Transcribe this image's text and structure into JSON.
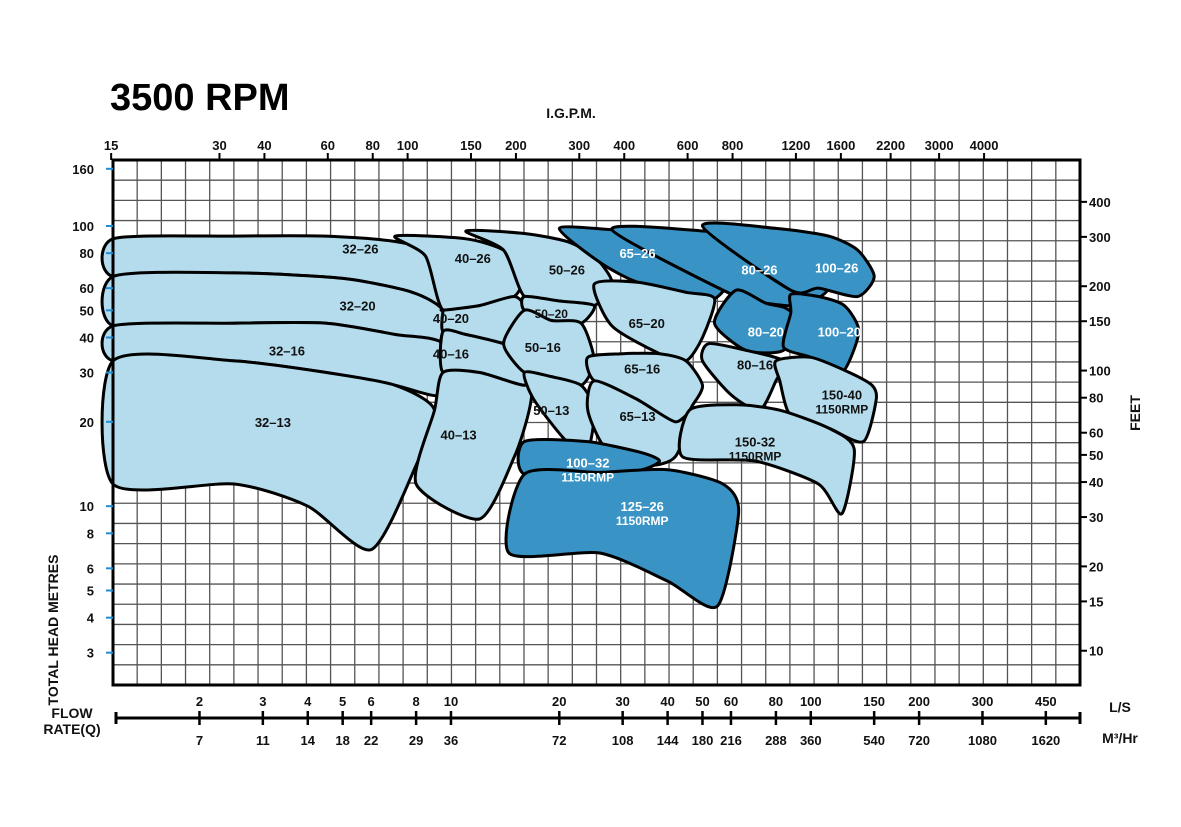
{
  "chart_data": {
    "type": "area",
    "title": "3500 RPM",
    "top_axis_title": "I.G.P.M.",
    "left_axis_title": "TOTAL HEAD     METRES",
    "right_axis_title": "FEET",
    "flow_title_line1": "FLOW",
    "flow_title_line2": "RATE(Q)",
    "unit_ls": "L/S",
    "unit_m3": "M³/Hr",
    "scale": "log-log",
    "grid": true,
    "x_range_ls": [
      1.15,
      560
    ],
    "y_range_m": [
      2.3,
      172
    ],
    "x_ticks_ls": [
      "2",
      "3",
      "4",
      "5",
      "6",
      "8",
      "10",
      "20",
      "30",
      "40",
      "50",
      "60",
      "80",
      "100",
      "150",
      "200",
      "300",
      "450"
    ],
    "x_ticks_m3hr": [
      "7",
      "11",
      "14",
      "18",
      "22",
      "29",
      "36",
      "72",
      "108",
      "144",
      "180",
      "216",
      "288",
      "360",
      "540",
      "720",
      "1080",
      "1620"
    ],
    "x_ticks_igpm": [
      "15",
      "30",
      "40",
      "60",
      "80",
      "100",
      "150",
      "200",
      "300",
      "400",
      "600",
      "800",
      "1200",
      "1600",
      "2200",
      "3000",
      "4000"
    ],
    "y_ticks_metres": [
      "160",
      "100",
      "80",
      "60",
      "50",
      "40",
      "30",
      "20",
      "10",
      "8",
      "6",
      "5",
      "4",
      "3"
    ],
    "y_ticks_feet": [
      "400",
      "300",
      "200",
      "150",
      "100",
      "80",
      "60",
      "50",
      "40",
      "30",
      "20",
      "15",
      "10"
    ],
    "series": [
      {
        "name": "32-26",
        "label": "32–26",
        "label_at": [
          5.6,
          83
        ],
        "color": "#b4dced",
        "text": "#111",
        "x": [
          1.15,
          2.5,
          4.5,
          7.0,
          9.5,
          9.5,
          7.8,
          5.0,
          2.5,
          1.15
        ],
        "y": [
          90,
          92,
          92,
          88,
          78,
          50,
          58,
          65,
          68,
          66
        ]
      },
      {
        "name": "32-20",
        "label": "32–20",
        "label_at": [
          5.5,
          52
        ],
        "color": "#b4dced",
        "text": "#111",
        "x": [
          1.15,
          2.5,
          5.0,
          7.8,
          9.5,
          9.5,
          7.0,
          4.5,
          2.5,
          1.15
        ],
        "y": [
          66,
          68,
          65,
          58,
          50,
          38,
          41,
          45,
          45,
          44
        ]
      },
      {
        "name": "32-16",
        "label": "32–16",
        "label_at": [
          3.5,
          36
        ],
        "color": "#b4dced",
        "text": "#111",
        "x": [
          1.15,
          2.5,
          4.5,
          7.0,
          9.5,
          9.5,
          7.0,
          4.5,
          2.5,
          1.15
        ],
        "y": [
          44,
          45,
          45,
          41,
          38,
          25,
          27,
          30,
          33,
          33
        ]
      },
      {
        "name": "32-13",
        "label": "32–13",
        "label_at": [
          3.2,
          20
        ],
        "color": "#b4dced",
        "text": "#111",
        "x": [
          1.15,
          2.5,
          4.5,
          7.0,
          9.0,
          8.0,
          6.0,
          4.0,
          2.5,
          1.15
        ],
        "y": [
          33,
          33,
          30,
          27,
          22,
          14,
          7,
          10,
          12,
          12
        ]
      },
      {
        "name": "40-26",
        "label": "40–26",
        "label_at": [
          11.5,
          77
        ],
        "color": "#b4dced",
        "text": "#111",
        "x": [
          7.0,
          11.0,
          14.0,
          16.0,
          15.0,
          12.0,
          9.5,
          8.5
        ],
        "y": [
          92,
          90,
          82,
          68,
          56,
          52,
          50,
          78
        ]
      },
      {
        "name": "40-20",
        "label": "40–20",
        "label_at": [
          10.0,
          47
        ],
        "color": "#b4dced",
        "text": "#111",
        "x": [
          9.5,
          12.0,
          15.0,
          16.0,
          14.0,
          11.0,
          9.5,
          9.5
        ],
        "y": [
          50,
          52,
          56,
          50,
          38,
          41,
          42,
          50
        ]
      },
      {
        "name": "40-16",
        "label": "40–16",
        "label_at": [
          10.0,
          35
        ],
        "color": "#b4dced",
        "text": "#111",
        "x": [
          9.5,
          11.0,
          14.0,
          16.0,
          17.0,
          16.0,
          12.0,
          9.5
        ],
        "y": [
          42,
          41,
          38,
          35,
          30,
          27,
          30,
          30
        ]
      },
      {
        "name": "40-13",
        "label": "40–13",
        "label_at": [
          10.5,
          18
        ],
        "color": "#b4dced",
        "text": "#111",
        "x": [
          9.5,
          12.0,
          16.0,
          17.0,
          16.5,
          15.0,
          12.0,
          8.0,
          9.0
        ],
        "y": [
          30,
          30,
          27,
          30,
          22,
          15,
          9,
          12,
          22
        ]
      },
      {
        "name": "50-26",
        "label": "50–26",
        "label_at": [
          21,
          70
        ],
        "color": "#b4dced",
        "text": "#111",
        "x": [
          11.0,
          16.0,
          21.0,
          25.0,
          28.0,
          25.0,
          20.0,
          16.0,
          14.0
        ],
        "y": [
          96,
          94,
          88,
          78,
          63,
          52,
          54,
          56,
          82
        ]
      },
      {
        "name": "50-20",
        "label": "50–20",
        "label_at": [
          19,
          49
        ],
        "color": "#b4dced",
        "text": "#111",
        "x": [
          16.0,
          20.0,
          25.0,
          23.0,
          19.0,
          16.0
        ],
        "y": [
          56,
          54,
          52,
          45,
          46,
          50
        ]
      },
      {
        "name": "50-16",
        "label": "50–16",
        "label_at": [
          18,
          37
        ],
        "color": "#b4dced",
        "text": "#111",
        "x": [
          14.0,
          16.0,
          19.0,
          23.0,
          25.0,
          23.0,
          19.0,
          16.0
        ],
        "y": [
          38,
          50,
          46,
          45,
          33,
          27,
          29,
          30
        ]
      },
      {
        "name": "50-13",
        "label": "50–13",
        "label_at": [
          19,
          22
        ],
        "color": "#b4dced",
        "text": "#111",
        "x": [
          16.0,
          19.0,
          23.0,
          25.0,
          24.0,
          21.0,
          17.0
        ],
        "y": [
          30,
          29,
          27,
          22,
          16,
          17,
          24
        ]
      },
      {
        "name": "65-26",
        "label": "65–26",
        "label_at": [
          33,
          80
        ],
        "color": "#3a93c5",
        "text": "#ffffff",
        "x": [
          20.0,
          28.0,
          38.0,
          50.0,
          62.0,
          54.0,
          45.0,
          33.0,
          26.0
        ],
        "y": [
          98,
          97,
          94,
          86,
          70,
          55,
          58,
          63,
          74
        ]
      },
      {
        "name": "65-20",
        "label": "65–20",
        "label_at": [
          35,
          45
        ],
        "color": "#b4dced",
        "text": "#111",
        "x": [
          25.0,
          33.0,
          45.0,
          54.0,
          50.0,
          45.0,
          38.0,
          28.0
        ],
        "y": [
          62,
          63,
          58,
          55,
          40,
          33,
          35,
          44
        ]
      },
      {
        "name": "65-16",
        "label": "65–16",
        "label_at": [
          34,
          31
        ],
        "color": "#b4dced",
        "text": "#111",
        "x": [
          24.0,
          30.0,
          38.0,
          45.0,
          50.0,
          47.0,
          42.0,
          33.0,
          25.0
        ],
        "y": [
          34,
          35,
          35,
          33,
          27,
          23,
          19,
          24,
          28
        ]
      },
      {
        "name": "65-13",
        "label": "65–13",
        "label_at": [
          33,
          21
        ],
        "color": "#b4dced",
        "text": "#111",
        "x": [
          25.0,
          33.0,
          42.0,
          47.0,
          42.0,
          35.0,
          27.0,
          24.0
        ],
        "y": [
          28,
          24,
          20,
          22,
          15,
          14,
          16,
          22
        ]
      },
      {
        "name": "80-26",
        "label": "80–26",
        "label_at": [
          72,
          70
        ],
        "color": "#3a93c5",
        "text": "#ffffff",
        "x": [
          28.0,
          50.0,
          78.0,
          100.0,
          112.0,
          95.0,
          75.0,
          62.0
        ],
        "y": [
          97,
          96,
          88,
          76,
          60,
          52,
          53,
          56
        ]
      },
      {
        "name": "80-20",
        "label": "80–20",
        "label_at": [
          75,
          42
        ],
        "color": "#3a93c5",
        "text": "#ffffff",
        "x": [
          62.0,
          75.0,
          85.0,
          92.0,
          84.0,
          66.0,
          54.0
        ],
        "y": [
          59,
          53,
          51,
          46,
          36,
          36,
          45
        ]
      },
      {
        "name": "80-16",
        "label": "80–16",
        "label_at": [
          70,
          32
        ],
        "color": "#b4dced",
        "text": "#111",
        "x": [
          52.0,
          66.0,
          84.0,
          80.0,
          72.0,
          60.0,
          50.0
        ],
        "y": [
          38,
          36,
          33,
          28,
          22,
          25,
          33
        ]
      },
      {
        "name": "100-26",
        "label": "100–26",
        "label_at": [
          118,
          71
        ],
        "color": "#3a93c5",
        "text": "#ffffff",
        "x": [
          50.0,
          80.0,
          112.0,
          135.0,
          150.0,
          135.0,
          105.0,
          88.0
        ],
        "y": [
          100,
          98,
          92,
          82,
          66,
          56,
          60,
          59
        ]
      },
      {
        "name": "100-20",
        "label": "100–20",
        "label_at": [
          120,
          42
        ],
        "color": "#3a93c5",
        "text": "#ffffff",
        "x": [
          88.0,
          105.0,
          124.0,
          136.0,
          122.0,
          100.0,
          84.0,
          88.0
        ],
        "y": [
          57,
          56,
          52,
          42,
          30,
          34,
          37,
          49
        ]
      },
      {
        "name": "150-40 1150RMP",
        "label": "150-40",
        "label2": "1150RMP",
        "label_at": [
          122,
          25
        ],
        "color": "#b4dced",
        "text": "#111",
        "x": [
          80.0,
          100.0,
          128.0,
          148.0,
          152.0,
          140.0,
          112.0,
          88.0,
          82.0
        ],
        "y": [
          33,
          34,
          30,
          27,
          24,
          17,
          19,
          21,
          28
        ]
      },
      {
        "name": "150-32 1150RMP",
        "label": "150-32",
        "label2": "1150RMP",
        "label_at": [
          70,
          17
        ],
        "color": "#b4dced",
        "text": "#111",
        "x": [
          46.0,
          62.0,
          82.0,
          112.0,
          132.0,
          122.0,
          105.0,
          70.0,
          44.0
        ],
        "y": [
          22,
          23,
          22,
          19,
          16,
          9.4,
          12,
          14.5,
          15
        ]
      },
      {
        "name": "100-32 1150RMP",
        "label": "100–32",
        "label2": "1150RMP",
        "label_at": [
          24,
          14.3
        ],
        "color": "#3a93c5",
        "text": "#ffffff",
        "x": [
          16.0,
          24.0,
          34.0,
          38.0,
          34.0,
          26.0,
          16.0
        ],
        "y": [
          17,
          17,
          15.5,
          14.5,
          13.5,
          13.0,
          13.0
        ]
      },
      {
        "name": "125-26 1150RMP",
        "label": "125–26",
        "label2": "1150RMP",
        "label_at": [
          34,
          10.0
        ],
        "color": "#3a93c5",
        "text": "#ffffff",
        "x": [
          16.0,
          26.0,
          40.0,
          57.0,
          63.0,
          55.0,
          40.0,
          26.0,
          14.5
        ],
        "y": [
          13.0,
          13.2,
          13.5,
          12.0,
          9.5,
          4.4,
          5.4,
          6.8,
          6.8
        ]
      }
    ]
  }
}
